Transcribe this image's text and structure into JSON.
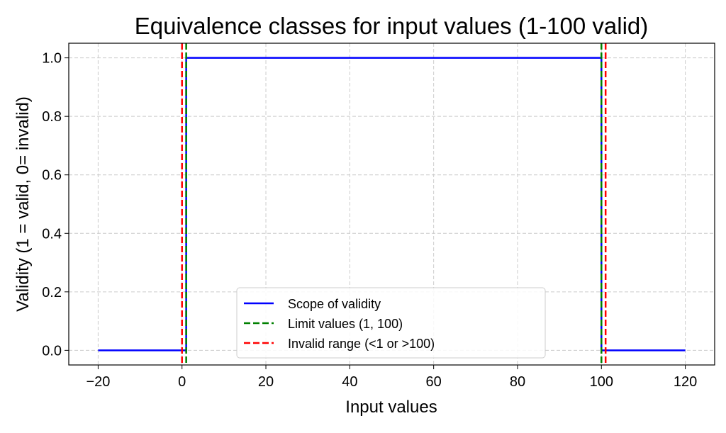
{
  "chart_data": {
    "type": "line",
    "title": "Equivalence classes for input values (1-100 valid)",
    "xlabel": "Input values",
    "ylabel": "Validity (1 = valid, 0= invalid)",
    "xlim": [
      -27,
      127
    ],
    "ylim": [
      -0.05,
      1.05
    ],
    "xticks": [
      -20,
      0,
      20,
      40,
      60,
      80,
      100,
      120
    ],
    "xtick_labels": [
      "−20",
      "0",
      "20",
      "40",
      "60",
      "80",
      "100",
      "120"
    ],
    "yticks": [
      0.0,
      0.2,
      0.4,
      0.6,
      0.8,
      1.0
    ],
    "ytick_labels": [
      "0.0",
      "0.2",
      "0.4",
      "0.6",
      "0.8",
      "1.0"
    ],
    "grid": true,
    "legend_placement": "lower-center",
    "series": [
      {
        "name": "Scope of validity",
        "style": "solid",
        "color": "#0000ff",
        "x": [
          -20,
          1,
          1,
          100,
          100,
          120
        ],
        "y": [
          0,
          0,
          1,
          1,
          0,
          0
        ]
      },
      {
        "name": "Limit values (1, 100)",
        "style": "dashed",
        "color": "#008000",
        "vlines": [
          1,
          100
        ]
      },
      {
        "name": "Invalid range (<1 or >100)",
        "style": "dashed",
        "color": "#ff0000",
        "vlines": [
          0,
          101
        ]
      }
    ]
  }
}
